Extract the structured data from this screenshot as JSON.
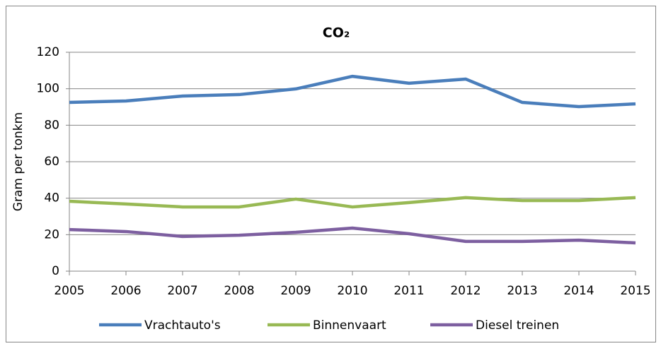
{
  "chart_data": {
    "type": "line",
    "title": "CO₂",
    "y_label": "Gram per tonkm",
    "x": [
      2005,
      2006,
      2007,
      2008,
      2009,
      2010,
      2011,
      2012,
      2013,
      2014,
      2015
    ],
    "xlim": [
      2005,
      2015
    ],
    "xticks": [
      2005,
      2006,
      2007,
      2008,
      2009,
      2010,
      2011,
      2012,
      2013,
      2014,
      2015
    ],
    "ylim": [
      0,
      120
    ],
    "yticks": [
      0,
      20,
      40,
      60,
      80,
      100,
      120
    ],
    "grid": true,
    "legend": "bottom",
    "series": [
      {
        "name": "Vrachtauto's",
        "color": "#4a7ebb",
        "values": [
          92.5,
          93.3,
          96,
          96.8,
          99.9,
          106.8,
          103,
          105.3,
          92.5,
          90.2,
          91.7
        ]
      },
      {
        "name": "Binnenvaart",
        "color": "#98b954",
        "values": [
          38.3,
          36.8,
          35.2,
          35.2,
          39.5,
          35.2,
          37.6,
          40.3,
          38.7,
          38.7,
          40.3
        ]
      },
      {
        "name": "Diesel treinen",
        "color": "#7d5fa0",
        "values": [
          22.8,
          21.7,
          19,
          19.7,
          21.3,
          23.6,
          20.5,
          16.3,
          16.3,
          17,
          15.5
        ]
      }
    ]
  }
}
